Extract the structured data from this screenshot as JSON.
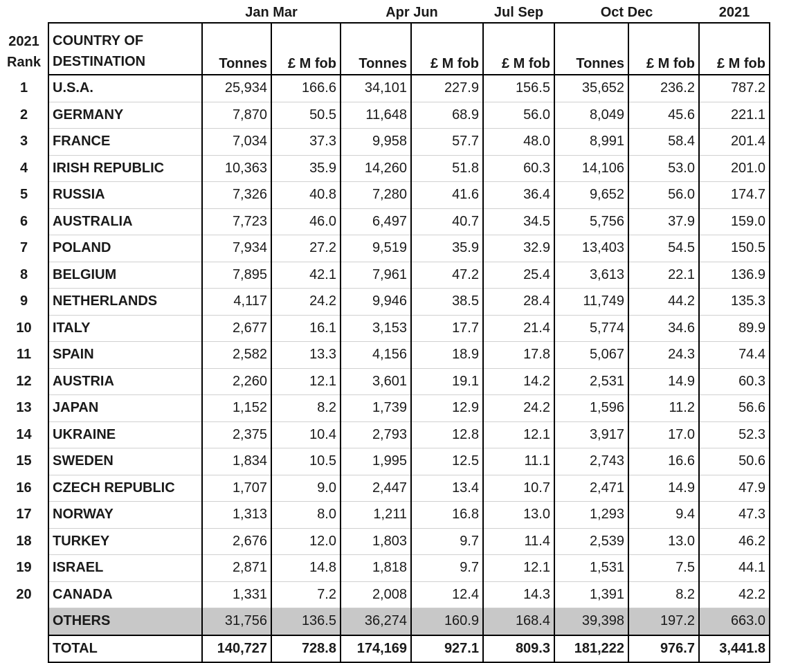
{
  "periods": {
    "q1": "Jan Mar",
    "q2": "Apr Jun",
    "q3": "Jul Sep",
    "q4": "Oct Dec",
    "year": "2021"
  },
  "headers": {
    "rank_line1": "2021",
    "rank_line2": "Rank",
    "country_line1": "COUNTRY OF",
    "country_line2": "DESTINATION",
    "tonnes": "Tonnes",
    "value": "£ M fob"
  },
  "rows": [
    {
      "rank": "1",
      "country": "U.S.A.",
      "q1_t": "25,934",
      "q1_v": "166.6",
      "q2_t": "34,101",
      "q2_v": "227.9",
      "q3_v": "156.5",
      "q4_t": "35,652",
      "q4_v": "236.2",
      "year_v": "787.2"
    },
    {
      "rank": "2",
      "country": "GERMANY",
      "q1_t": "7,870",
      "q1_v": "50.5",
      "q2_t": "11,648",
      "q2_v": "68.9",
      "q3_v": "56.0",
      "q4_t": "8,049",
      "q4_v": "45.6",
      "year_v": "221.1"
    },
    {
      "rank": "3",
      "country": "FRANCE",
      "q1_t": "7,034",
      "q1_v": "37.3",
      "q2_t": "9,958",
      "q2_v": "57.7",
      "q3_v": "48.0",
      "q4_t": "8,991",
      "q4_v": "58.4",
      "year_v": "201.4"
    },
    {
      "rank": "4",
      "country": "IRISH REPUBLIC",
      "q1_t": "10,363",
      "q1_v": "35.9",
      "q2_t": "14,260",
      "q2_v": "51.8",
      "q3_v": "60.3",
      "q4_t": "14,106",
      "q4_v": "53.0",
      "year_v": "201.0"
    },
    {
      "rank": "5",
      "country": "RUSSIA",
      "q1_t": "7,326",
      "q1_v": "40.8",
      "q2_t": "7,280",
      "q2_v": "41.6",
      "q3_v": "36.4",
      "q4_t": "9,652",
      "q4_v": "56.0",
      "year_v": "174.7"
    },
    {
      "rank": "6",
      "country": "AUSTRALIA",
      "q1_t": "7,723",
      "q1_v": "46.0",
      "q2_t": "6,497",
      "q2_v": "40.7",
      "q3_v": "34.5",
      "q4_t": "5,756",
      "q4_v": "37.9",
      "year_v": "159.0"
    },
    {
      "rank": "7",
      "country": "POLAND",
      "q1_t": "7,934",
      "q1_v": "27.2",
      "q2_t": "9,519",
      "q2_v": "35.9",
      "q3_v": "32.9",
      "q4_t": "13,403",
      "q4_v": "54.5",
      "year_v": "150.5"
    },
    {
      "rank": "8",
      "country": "BELGIUM",
      "q1_t": "7,895",
      "q1_v": "42.1",
      "q2_t": "7,961",
      "q2_v": "47.2",
      "q3_v": "25.4",
      "q4_t": "3,613",
      "q4_v": "22.1",
      "year_v": "136.9"
    },
    {
      "rank": "9",
      "country": "NETHERLANDS",
      "q1_t": "4,117",
      "q1_v": "24.2",
      "q2_t": "9,946",
      "q2_v": "38.5",
      "q3_v": "28.4",
      "q4_t": "11,749",
      "q4_v": "44.2",
      "year_v": "135.3"
    },
    {
      "rank": "10",
      "country": "ITALY",
      "q1_t": "2,677",
      "q1_v": "16.1",
      "q2_t": "3,153",
      "q2_v": "17.7",
      "q3_v": "21.4",
      "q4_t": "5,774",
      "q4_v": "34.6",
      "year_v": "89.9"
    },
    {
      "rank": "11",
      "country": "SPAIN",
      "q1_t": "2,582",
      "q1_v": "13.3",
      "q2_t": "4,156",
      "q2_v": "18.9",
      "q3_v": "17.8",
      "q4_t": "5,067",
      "q4_v": "24.3",
      "year_v": "74.4"
    },
    {
      "rank": "12",
      "country": "AUSTRIA",
      "q1_t": "2,260",
      "q1_v": "12.1",
      "q2_t": "3,601",
      "q2_v": "19.1",
      "q3_v": "14.2",
      "q4_t": "2,531",
      "q4_v": "14.9",
      "year_v": "60.3"
    },
    {
      "rank": "13",
      "country": "JAPAN",
      "q1_t": "1,152",
      "q1_v": "8.2",
      "q2_t": "1,739",
      "q2_v": "12.9",
      "q3_v": "24.2",
      "q4_t": "1,596",
      "q4_v": "11.2",
      "year_v": "56.6"
    },
    {
      "rank": "14",
      "country": "UKRAINE",
      "q1_t": "2,375",
      "q1_v": "10.4",
      "q2_t": "2,793",
      "q2_v": "12.8",
      "q3_v": "12.1",
      "q4_t": "3,917",
      "q4_v": "17.0",
      "year_v": "52.3"
    },
    {
      "rank": "15",
      "country": "SWEDEN",
      "q1_t": "1,834",
      "q1_v": "10.5",
      "q2_t": "1,995",
      "q2_v": "12.5",
      "q3_v": "11.1",
      "q4_t": "2,743",
      "q4_v": "16.6",
      "year_v": "50.6"
    },
    {
      "rank": "16",
      "country": "CZECH REPUBLIC",
      "q1_t": "1,707",
      "q1_v": "9.0",
      "q2_t": "2,447",
      "q2_v": "13.4",
      "q3_v": "10.7",
      "q4_t": "2,471",
      "q4_v": "14.9",
      "year_v": "47.9"
    },
    {
      "rank": "17",
      "country": "NORWAY",
      "q1_t": "1,313",
      "q1_v": "8.0",
      "q2_t": "1,211",
      "q2_v": "16.8",
      "q3_v": "13.0",
      "q4_t": "1,293",
      "q4_v": "9.4",
      "year_v": "47.3"
    },
    {
      "rank": "18",
      "country": "TURKEY",
      "q1_t": "2,676",
      "q1_v": "12.0",
      "q2_t": "1,803",
      "q2_v": "9.7",
      "q3_v": "11.4",
      "q4_t": "2,539",
      "q4_v": "13.0",
      "year_v": "46.2"
    },
    {
      "rank": "19",
      "country": "ISRAEL",
      "q1_t": "2,871",
      "q1_v": "14.8",
      "q2_t": "1,818",
      "q2_v": "9.7",
      "q3_v": "12.1",
      "q4_t": "1,531",
      "q4_v": "7.5",
      "year_v": "44.1"
    },
    {
      "rank": "20",
      "country": "CANADA",
      "q1_t": "1,331",
      "q1_v": "7.2",
      "q2_t": "2,008",
      "q2_v": "12.4",
      "q3_v": "14.3",
      "q4_t": "1,391",
      "q4_v": "8.2",
      "year_v": "42.2"
    }
  ],
  "others": {
    "country": "OTHERS",
    "q1_t": "31,756",
    "q1_v": "136.5",
    "q2_t": "36,274",
    "q2_v": "160.9",
    "q3_v": "168.4",
    "q4_t": "39,398",
    "q4_v": "197.2",
    "year_v": "663.0"
  },
  "total": {
    "country": "TOTAL",
    "q1_t": "140,727",
    "q1_v": "728.8",
    "q2_t": "174,169",
    "q2_v": "927.1",
    "q3_v": "809.3",
    "q4_t": "181,222",
    "q4_v": "976.7",
    "year_v": "3,441.8"
  }
}
